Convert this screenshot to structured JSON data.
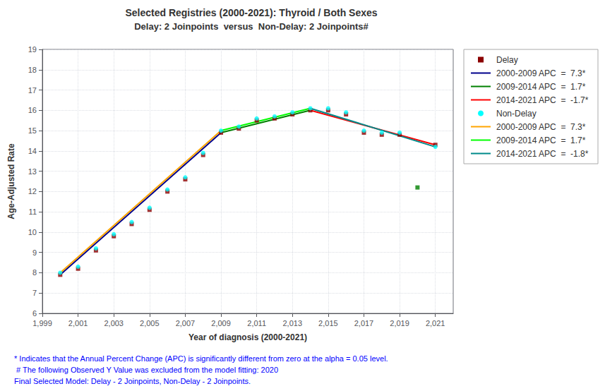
{
  "chart_data": {
    "type": "line",
    "title": "Selected Registries (2000-2021): Thyroid / Both Sexes",
    "subtitle": "Delay: 2 Joinpoints  versus  Non-Delay: 2 Joinpoints#",
    "x_label": "Year of diagnosis (2000-2021)",
    "y_label": "Age-Adjusted Rate",
    "xlim": [
      1999,
      2022
    ],
    "xticks": [
      1999,
      2001,
      2003,
      2005,
      2007,
      2009,
      2011,
      2013,
      2015,
      2017,
      2019,
      2021
    ],
    "ylim": [
      6,
      19
    ],
    "yticks": [
      6,
      7,
      8,
      9,
      10,
      11,
      12,
      13,
      14,
      15,
      16,
      17,
      18,
      19
    ],
    "grid": true,
    "legend": "right",
    "series": [
      {
        "name": "Delay",
        "type": "scatter",
        "marker": "square",
        "color": "#8B0000",
        "x": [
          2000,
          2001,
          2002,
          2003,
          2004,
          2005,
          2006,
          2007,
          2008,
          2009,
          2010,
          2011,
          2012,
          2013,
          2014,
          2015,
          2016,
          2017,
          2018,
          2019,
          2021
        ],
        "values": [
          7.9,
          8.2,
          9.1,
          9.8,
          10.4,
          11.1,
          12.0,
          12.6,
          13.8,
          14.9,
          15.1,
          15.5,
          15.6,
          15.8,
          16.0,
          16.0,
          15.8,
          14.9,
          14.8,
          14.8,
          14.3
        ]
      },
      {
        "name": "2000-2009 APC  =  7.3*",
        "type": "line",
        "color": "#00008B",
        "x": [
          2000,
          2009
        ],
        "values": [
          7.9,
          14.9
        ]
      },
      {
        "name": "2009-2014 APC  =  1.7*",
        "type": "line",
        "color": "#008000",
        "x": [
          2009,
          2014
        ],
        "values": [
          14.9,
          16.0
        ]
      },
      {
        "name": "2014-2021 APC  =  -1.7*",
        "type": "line",
        "color": "#FF0000",
        "x": [
          2014,
          2021
        ],
        "values": [
          16.0,
          14.3
        ]
      },
      {
        "name": "Non-Delay",
        "type": "scatter",
        "marker": "circle",
        "color": "#00FFFF",
        "x": [
          2000,
          2001,
          2002,
          2003,
          2004,
          2005,
          2006,
          2007,
          2008,
          2009,
          2010,
          2011,
          2012,
          2013,
          2014,
          2015,
          2016,
          2017,
          2018,
          2019,
          2021
        ],
        "values": [
          8.0,
          8.3,
          9.2,
          9.9,
          10.5,
          11.2,
          12.1,
          12.7,
          13.9,
          15.0,
          15.2,
          15.6,
          15.7,
          15.9,
          16.1,
          16.1,
          15.9,
          15.0,
          14.9,
          14.9,
          14.2
        ]
      },
      {
        "name": "2000-2009 APC  =  7.3*",
        "type": "line",
        "color": "#FFA500",
        "x": [
          2000,
          2009
        ],
        "values": [
          8.0,
          15.0
        ]
      },
      {
        "name": "2009-2014 APC  =  1.7*",
        "type": "line",
        "color": "#00FF00",
        "x": [
          2009,
          2014
        ],
        "values": [
          15.0,
          16.1
        ]
      },
      {
        "name": "2014-2021 APC  =  -1.8*",
        "type": "line",
        "color": "#008B8B",
        "x": [
          2014,
          2021
        ],
        "values": [
          16.1,
          14.2
        ]
      },
      {
        "type": "scatter",
        "marker": "square",
        "color": "#008000",
        "x": [
          2020
        ],
        "values": [
          12.2
        ]
      }
    ],
    "annotations": [
      {
        "text": "* Indicates that the Annual Percent Change (APC) is significantly different from zero at the alpha = 0.05 level.",
        "color": "blue"
      },
      {
        "text": " # The following Observed Y Value was excluded from the model fitting: 2020",
        "color": "blue"
      },
      {
        "text": "Final Selected Model: Delay - 2 Joinpoints, Non-Delay - 2 Joinpoints.",
        "color": "blue"
      }
    ]
  }
}
